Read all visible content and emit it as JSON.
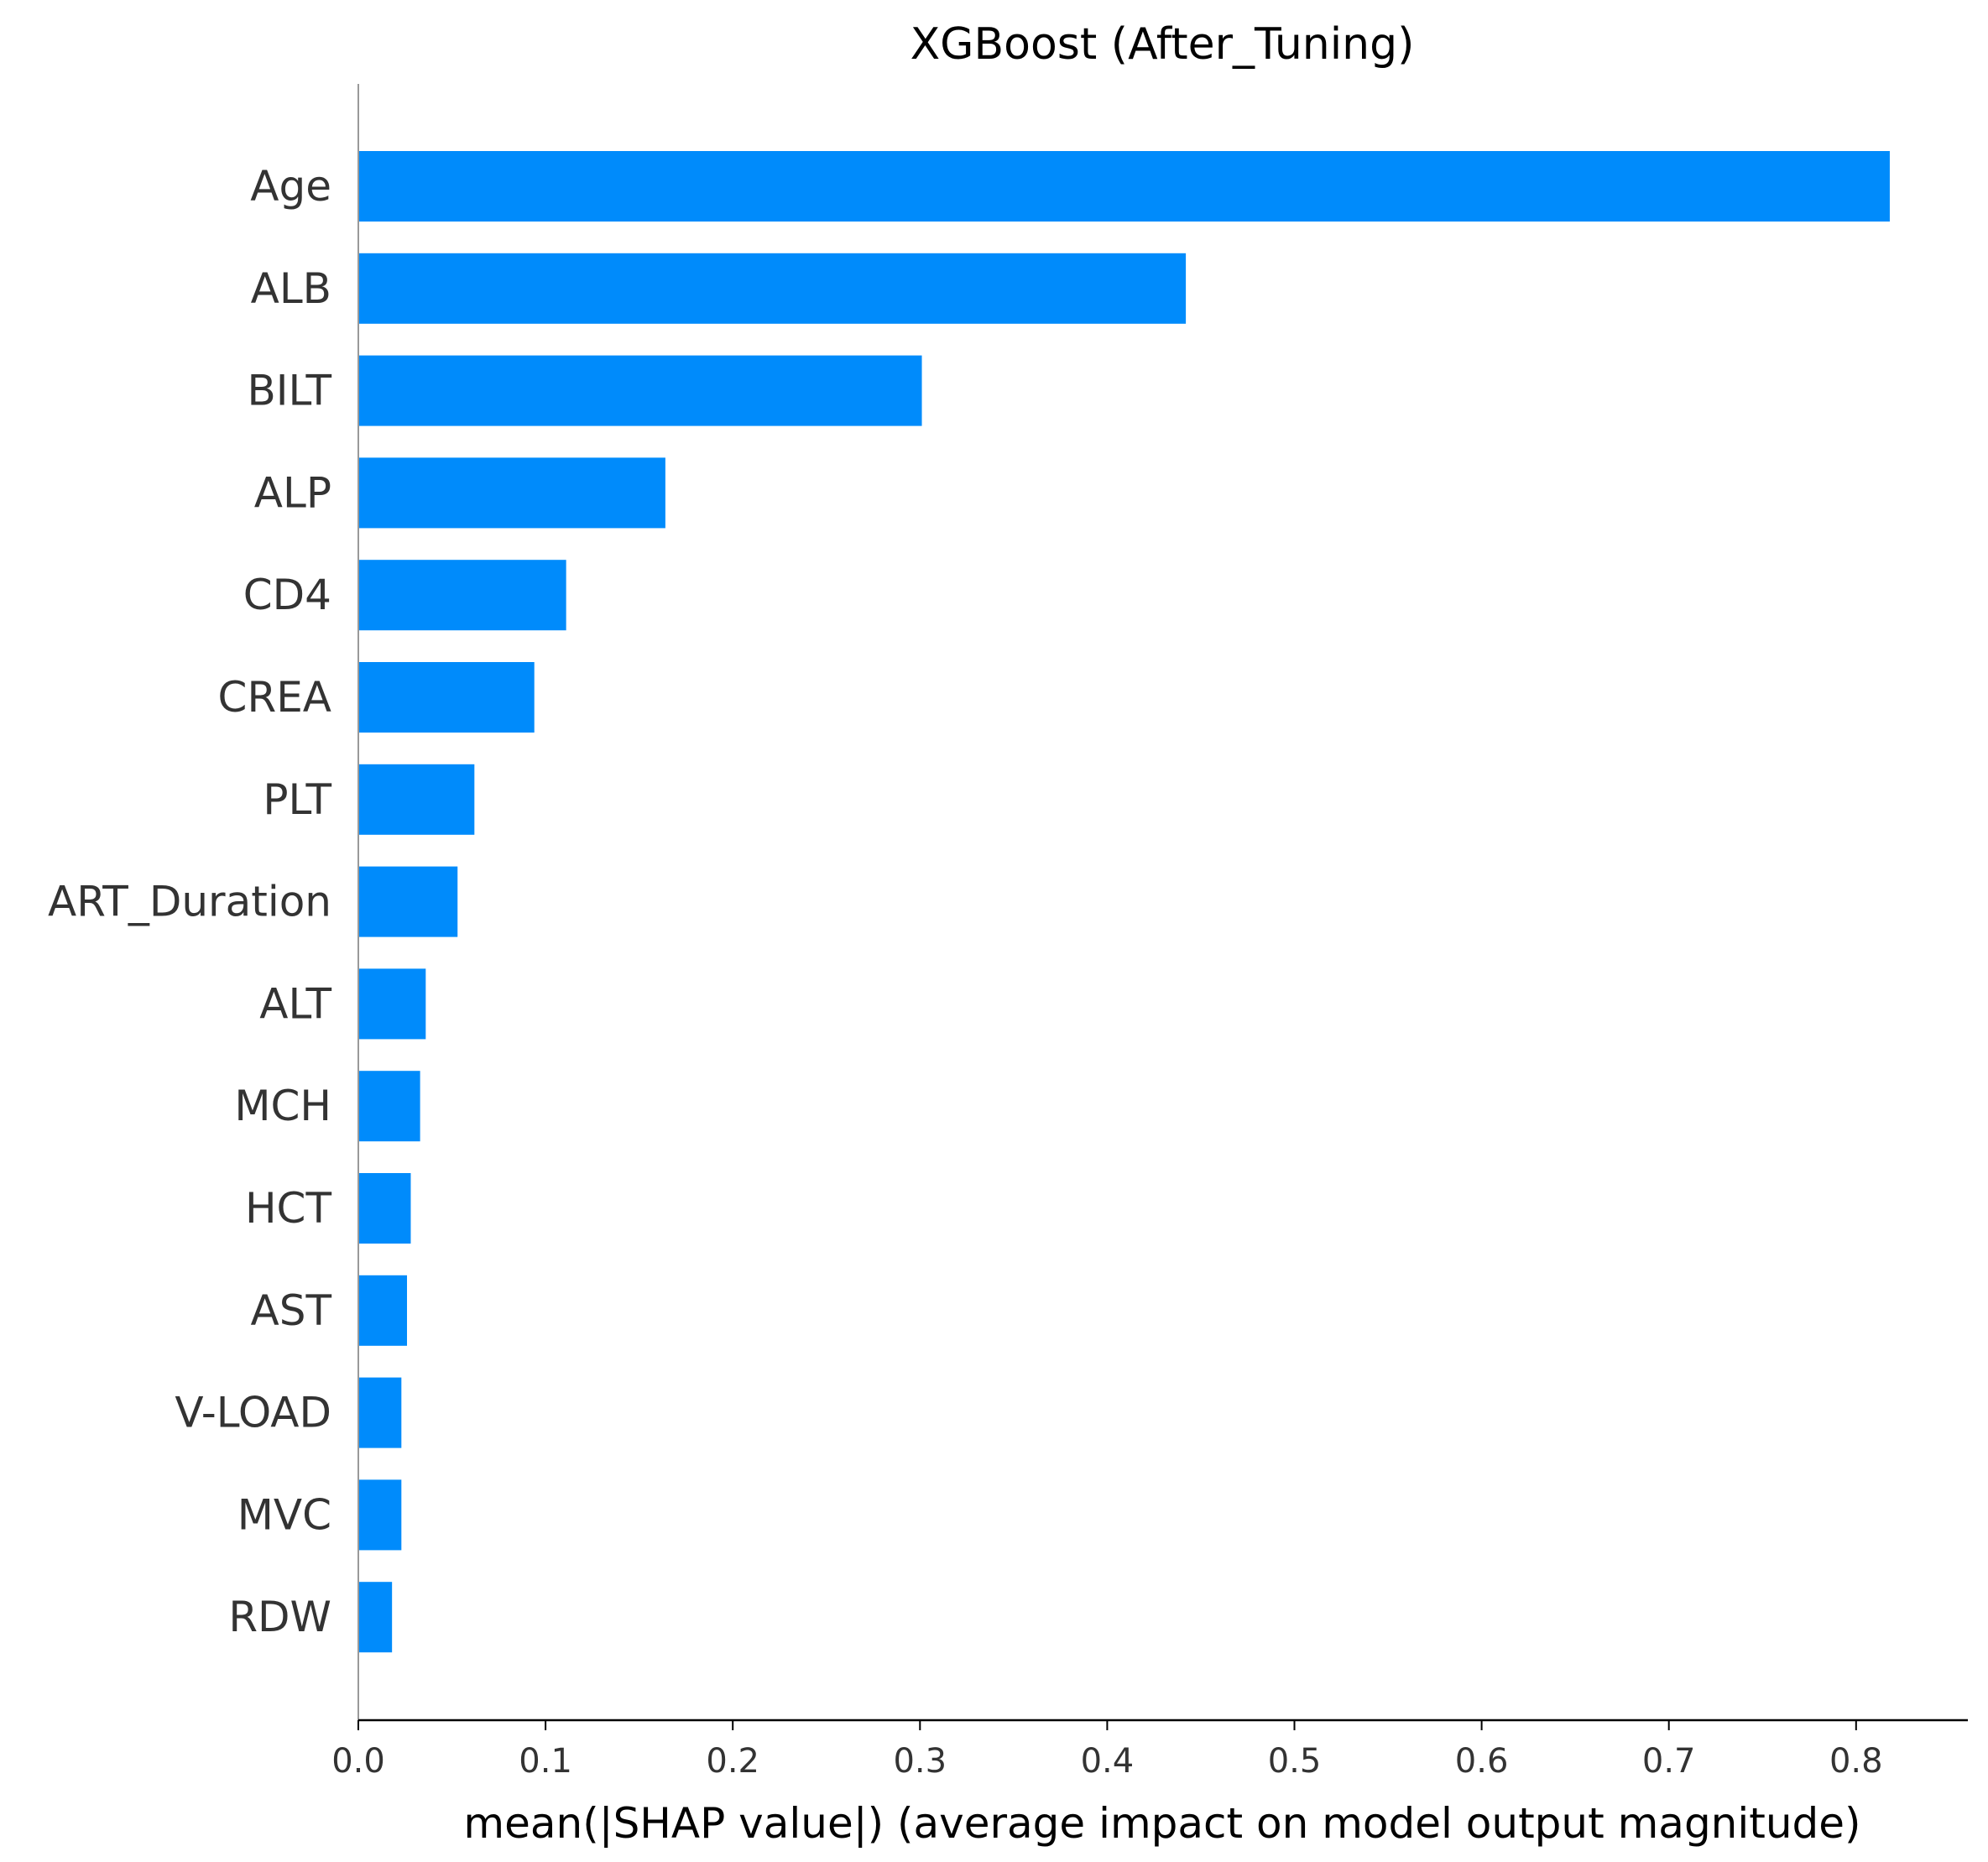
{
  "chart_data": {
    "type": "bar",
    "orientation": "horizontal",
    "title": "XGBoost (After_Tuning)",
    "xlabel": "mean(|SHAP value|) (average impact on model output magnitude)",
    "ylabel": "",
    "xlim": [
      0,
      0.86
    ],
    "xticks": [
      0.0,
      0.1,
      0.2,
      0.3,
      0.4,
      0.5,
      0.6,
      0.7,
      0.8
    ],
    "xtick_labels": [
      "0.0",
      "0.1",
      "0.2",
      "0.3",
      "0.4",
      "0.5",
      "0.6",
      "0.7",
      "0.8"
    ],
    "categories": [
      "Age",
      "ALB",
      "BILT",
      "ALP",
      "CD4",
      "CREA",
      "PLT",
      "ART_Duration",
      "ALT",
      "MCH",
      "HCT",
      "AST",
      "V-LOAD",
      "MVC",
      "RDW"
    ],
    "values": [
      0.818,
      0.442,
      0.301,
      0.164,
      0.111,
      0.094,
      0.062,
      0.053,
      0.036,
      0.033,
      0.028,
      0.026,
      0.023,
      0.023,
      0.018
    ],
    "grid": false,
    "bar_color": "#008bfb"
  }
}
